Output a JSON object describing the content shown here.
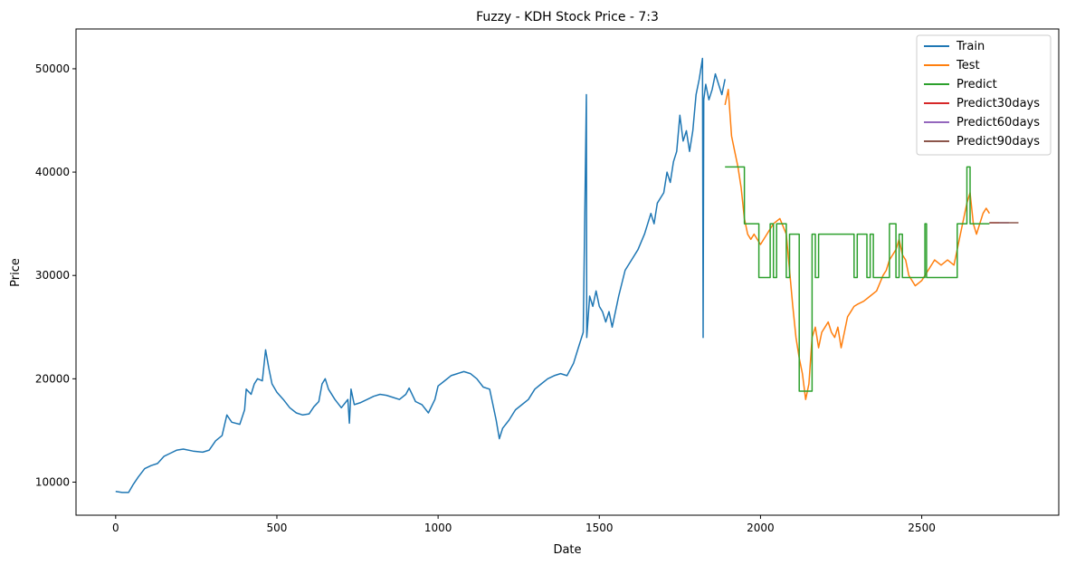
{
  "chart_data": {
    "type": "line",
    "title": "Fuzzy - KDH Stock Price - 7:3",
    "xlabel": "Date",
    "ylabel": "Price",
    "xlim": [
      -123,
      2925
    ],
    "ylim": [
      6800,
      53850
    ],
    "xticks": [
      0,
      500,
      1000,
      1500,
      2000,
      2500
    ],
    "yticks": [
      10000,
      20000,
      30000,
      40000,
      50000
    ],
    "grid": false,
    "legend_position": "top-right",
    "series": [
      {
        "name": "Train",
        "color": "#1f77b4",
        "points": [
          [
            0,
            9100
          ],
          [
            20,
            9000
          ],
          [
            40,
            9000
          ],
          [
            55,
            9800
          ],
          [
            70,
            10500
          ],
          [
            90,
            11300
          ],
          [
            110,
            11600
          ],
          [
            130,
            11800
          ],
          [
            150,
            12500
          ],
          [
            170,
            12800
          ],
          [
            190,
            13100
          ],
          [
            210,
            13200
          ],
          [
            240,
            13000
          ],
          [
            270,
            12900
          ],
          [
            290,
            13100
          ],
          [
            310,
            14000
          ],
          [
            330,
            14500
          ],
          [
            345,
            16500
          ],
          [
            360,
            15800
          ],
          [
            385,
            15600
          ],
          [
            400,
            17000
          ],
          [
            405,
            19000
          ],
          [
            420,
            18500
          ],
          [
            430,
            19500
          ],
          [
            440,
            20000
          ],
          [
            455,
            19800
          ],
          [
            465,
            22800
          ],
          [
            475,
            21000
          ],
          [
            485,
            19500
          ],
          [
            500,
            18700
          ],
          [
            520,
            18000
          ],
          [
            540,
            17200
          ],
          [
            560,
            16700
          ],
          [
            580,
            16500
          ],
          [
            600,
            16600
          ],
          [
            615,
            17300
          ],
          [
            630,
            17800
          ],
          [
            640,
            19500
          ],
          [
            650,
            20000
          ],
          [
            660,
            19000
          ],
          [
            680,
            18000
          ],
          [
            700,
            17200
          ],
          [
            720,
            18000
          ],
          [
            725,
            15700
          ],
          [
            730,
            19000
          ],
          [
            740,
            17500
          ],
          [
            760,
            17700
          ],
          [
            780,
            18000
          ],
          [
            800,
            18300
          ],
          [
            820,
            18500
          ],
          [
            840,
            18400
          ],
          [
            860,
            18200
          ],
          [
            880,
            18000
          ],
          [
            900,
            18500
          ],
          [
            910,
            19100
          ],
          [
            930,
            17800
          ],
          [
            950,
            17500
          ],
          [
            970,
            16700
          ],
          [
            990,
            18000
          ],
          [
            1000,
            19300
          ],
          [
            1020,
            19800
          ],
          [
            1040,
            20300
          ],
          [
            1060,
            20500
          ],
          [
            1080,
            20700
          ],
          [
            1100,
            20500
          ],
          [
            1120,
            20000
          ],
          [
            1140,
            19200
          ],
          [
            1160,
            19000
          ],
          [
            1170,
            17500
          ],
          [
            1180,
            16000
          ],
          [
            1190,
            14200
          ],
          [
            1200,
            15200
          ],
          [
            1220,
            16000
          ],
          [
            1240,
            17000
          ],
          [
            1260,
            17500
          ],
          [
            1280,
            18000
          ],
          [
            1300,
            19000
          ],
          [
            1320,
            19500
          ],
          [
            1340,
            20000
          ],
          [
            1360,
            20300
          ],
          [
            1380,
            20500
          ],
          [
            1400,
            20300
          ],
          [
            1420,
            21500
          ],
          [
            1435,
            23000
          ],
          [
            1450,
            24500
          ],
          [
            1460,
            47500
          ],
          [
            1461,
            24000
          ],
          [
            1470,
            28000
          ],
          [
            1480,
            27000
          ],
          [
            1490,
            28500
          ],
          [
            1500,
            27000
          ],
          [
            1510,
            26500
          ],
          [
            1520,
            25500
          ],
          [
            1530,
            26500
          ],
          [
            1540,
            25000
          ],
          [
            1550,
            26500
          ],
          [
            1560,
            28000
          ],
          [
            1580,
            30500
          ],
          [
            1600,
            31500
          ],
          [
            1620,
            32500
          ],
          [
            1640,
            34000
          ],
          [
            1660,
            36000
          ],
          [
            1670,
            35000
          ],
          [
            1680,
            37000
          ],
          [
            1700,
            38000
          ],
          [
            1710,
            40000
          ],
          [
            1720,
            39000
          ],
          [
            1730,
            41000
          ],
          [
            1740,
            42000
          ],
          [
            1750,
            45500
          ],
          [
            1760,
            43000
          ],
          [
            1770,
            44000
          ],
          [
            1780,
            42000
          ],
          [
            1790,
            44000
          ],
          [
            1800,
            47500
          ],
          [
            1810,
            49000
          ],
          [
            1820,
            51000
          ],
          [
            1822,
            24000
          ],
          [
            1824,
            47000
          ],
          [
            1830,
            48500
          ],
          [
            1840,
            47000
          ],
          [
            1850,
            48000
          ],
          [
            1860,
            49500
          ],
          [
            1870,
            48500
          ],
          [
            1880,
            47500
          ],
          [
            1890,
            49000
          ]
        ]
      },
      {
        "name": "Test",
        "color": "#ff7f0e",
        "points": [
          [
            1890,
            46500
          ],
          [
            1900,
            48000
          ],
          [
            1910,
            43500
          ],
          [
            1920,
            42000
          ],
          [
            1930,
            40500
          ],
          [
            1940,
            38500
          ],
          [
            1950,
            35500
          ],
          [
            1960,
            34000
          ],
          [
            1970,
            33500
          ],
          [
            1980,
            34000
          ],
          [
            2000,
            33000
          ],
          [
            2020,
            34000
          ],
          [
            2040,
            35000
          ],
          [
            2060,
            35500
          ],
          [
            2080,
            34000
          ],
          [
            2090,
            30500
          ],
          [
            2100,
            27000
          ],
          [
            2110,
            24000
          ],
          [
            2120,
            22000
          ],
          [
            2130,
            20500
          ],
          [
            2140,
            18000
          ],
          [
            2150,
            19500
          ],
          [
            2160,
            24000
          ],
          [
            2170,
            25000
          ],
          [
            2180,
            23000
          ],
          [
            2190,
            24500
          ],
          [
            2200,
            25000
          ],
          [
            2210,
            25500
          ],
          [
            2220,
            24500
          ],
          [
            2230,
            24000
          ],
          [
            2240,
            25000
          ],
          [
            2250,
            23000
          ],
          [
            2260,
            24500
          ],
          [
            2270,
            26000
          ],
          [
            2280,
            26500
          ],
          [
            2290,
            27000
          ],
          [
            2300,
            27200
          ],
          [
            2320,
            27500
          ],
          [
            2340,
            28000
          ],
          [
            2360,
            28500
          ],
          [
            2380,
            30000
          ],
          [
            2390,
            30500
          ],
          [
            2400,
            31500
          ],
          [
            2410,
            32000
          ],
          [
            2420,
            32500
          ],
          [
            2430,
            33500
          ],
          [
            2440,
            32000
          ],
          [
            2450,
            31500
          ],
          [
            2460,
            30000
          ],
          [
            2480,
            29000
          ],
          [
            2500,
            29500
          ],
          [
            2520,
            30500
          ],
          [
            2540,
            31500
          ],
          [
            2560,
            31000
          ],
          [
            2580,
            31500
          ],
          [
            2600,
            31000
          ],
          [
            2620,
            34000
          ],
          [
            2640,
            37000
          ],
          [
            2650,
            38000
          ],
          [
            2660,
            35000
          ],
          [
            2670,
            34000
          ],
          [
            2680,
            35000
          ],
          [
            2690,
            36000
          ],
          [
            2700,
            36500
          ],
          [
            2710,
            36000
          ]
        ]
      },
      {
        "name": "Predict",
        "color": "#2ca02c",
        "points": [
          [
            1890,
            40500
          ],
          [
            1950,
            40500
          ],
          [
            1950,
            35000
          ],
          [
            1995,
            35000
          ],
          [
            1995,
            29800
          ],
          [
            2030,
            29800
          ],
          [
            2030,
            35000
          ],
          [
            2040,
            35000
          ],
          [
            2040,
            29800
          ],
          [
            2050,
            29800
          ],
          [
            2050,
            35000
          ],
          [
            2080,
            35000
          ],
          [
            2080,
            29800
          ],
          [
            2090,
            29800
          ],
          [
            2090,
            34000
          ],
          [
            2120,
            34000
          ],
          [
            2120,
            18800
          ],
          [
            2160,
            18800
          ],
          [
            2160,
            34000
          ],
          [
            2170,
            34000
          ],
          [
            2170,
            29800
          ],
          [
            2180,
            29800
          ],
          [
            2180,
            34000
          ],
          [
            2290,
            34000
          ],
          [
            2290,
            29800
          ],
          [
            2300,
            29800
          ],
          [
            2300,
            34000
          ],
          [
            2330,
            34000
          ],
          [
            2330,
            29800
          ],
          [
            2340,
            29800
          ],
          [
            2340,
            34000
          ],
          [
            2350,
            34000
          ],
          [
            2350,
            29800
          ],
          [
            2400,
            29800
          ],
          [
            2400,
            35000
          ],
          [
            2420,
            35000
          ],
          [
            2420,
            29800
          ],
          [
            2430,
            29800
          ],
          [
            2430,
            34000
          ],
          [
            2440,
            34000
          ],
          [
            2440,
            29800
          ],
          [
            2510,
            29800
          ],
          [
            2510,
            35000
          ],
          [
            2515,
            35000
          ],
          [
            2515,
            29800
          ],
          [
            2610,
            29800
          ],
          [
            2610,
            35000
          ],
          [
            2640,
            35000
          ],
          [
            2640,
            40500
          ],
          [
            2650,
            40500
          ],
          [
            2650,
            35000
          ],
          [
            2710,
            35000
          ]
        ]
      },
      {
        "name": "Predict30days",
        "color": "#d62728",
        "points": [
          [
            2710,
            35100
          ],
          [
            2740,
            35100
          ]
        ]
      },
      {
        "name": "Predict60days",
        "color": "#9467bd",
        "points": [
          [
            2740,
            35100
          ],
          [
            2770,
            35100
          ]
        ]
      },
      {
        "name": "Predict90days",
        "color": "#8c564b",
        "points": [
          [
            2710,
            35100
          ],
          [
            2800,
            35100
          ]
        ]
      }
    ]
  }
}
